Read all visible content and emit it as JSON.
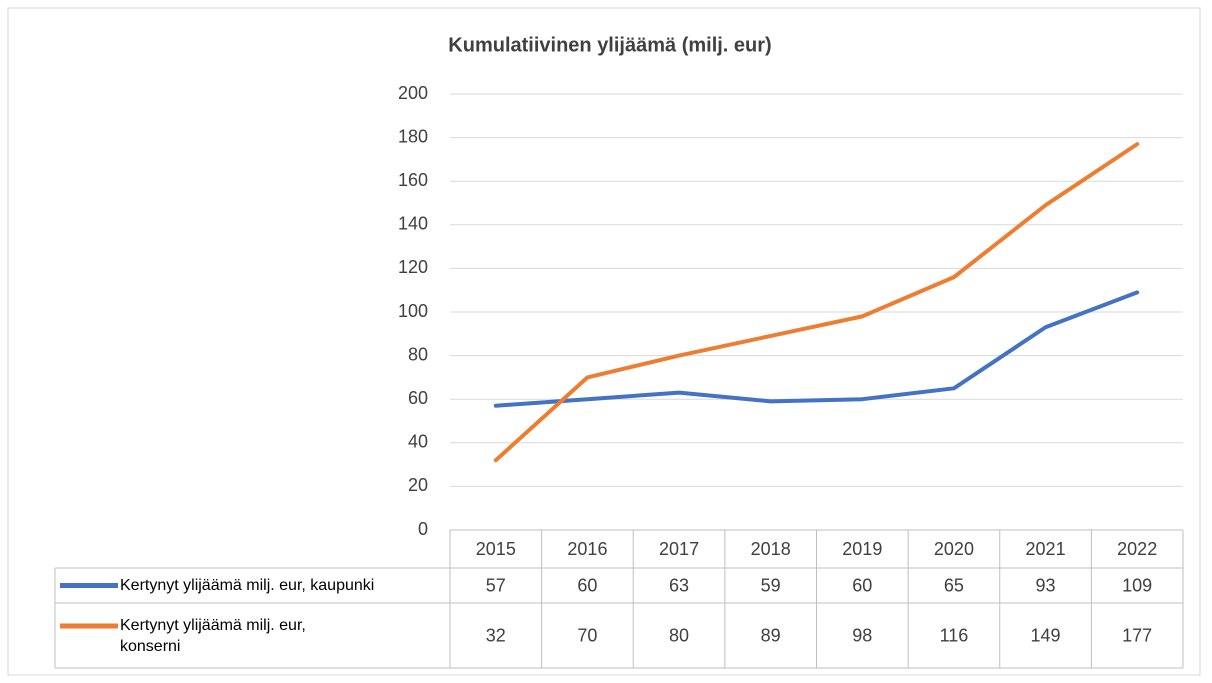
{
  "chart_data": {
    "type": "line",
    "title": "Kumulatiivinen ylijäämä (milj. eur)",
    "categories": [
      "2015",
      "2016",
      "2017",
      "2018",
      "2019",
      "2020",
      "2021",
      "2022"
    ],
    "series": [
      {
        "name": "Kertynyt ylijäämä milj. eur, kaupunki",
        "color": "#4472c4",
        "values": [
          57,
          60,
          63,
          59,
          60,
          65,
          93,
          109
        ]
      },
      {
        "name": "Kertynyt ylijäämä milj. eur, konserni",
        "color": "#ed7d31",
        "values": [
          32,
          70,
          80,
          89,
          98,
          116,
          149,
          177
        ]
      }
    ],
    "ylim": [
      0,
      200
    ],
    "yticks": [
      0,
      20,
      40,
      60,
      80,
      100,
      120,
      140,
      160,
      180,
      200
    ],
    "grid": true
  }
}
